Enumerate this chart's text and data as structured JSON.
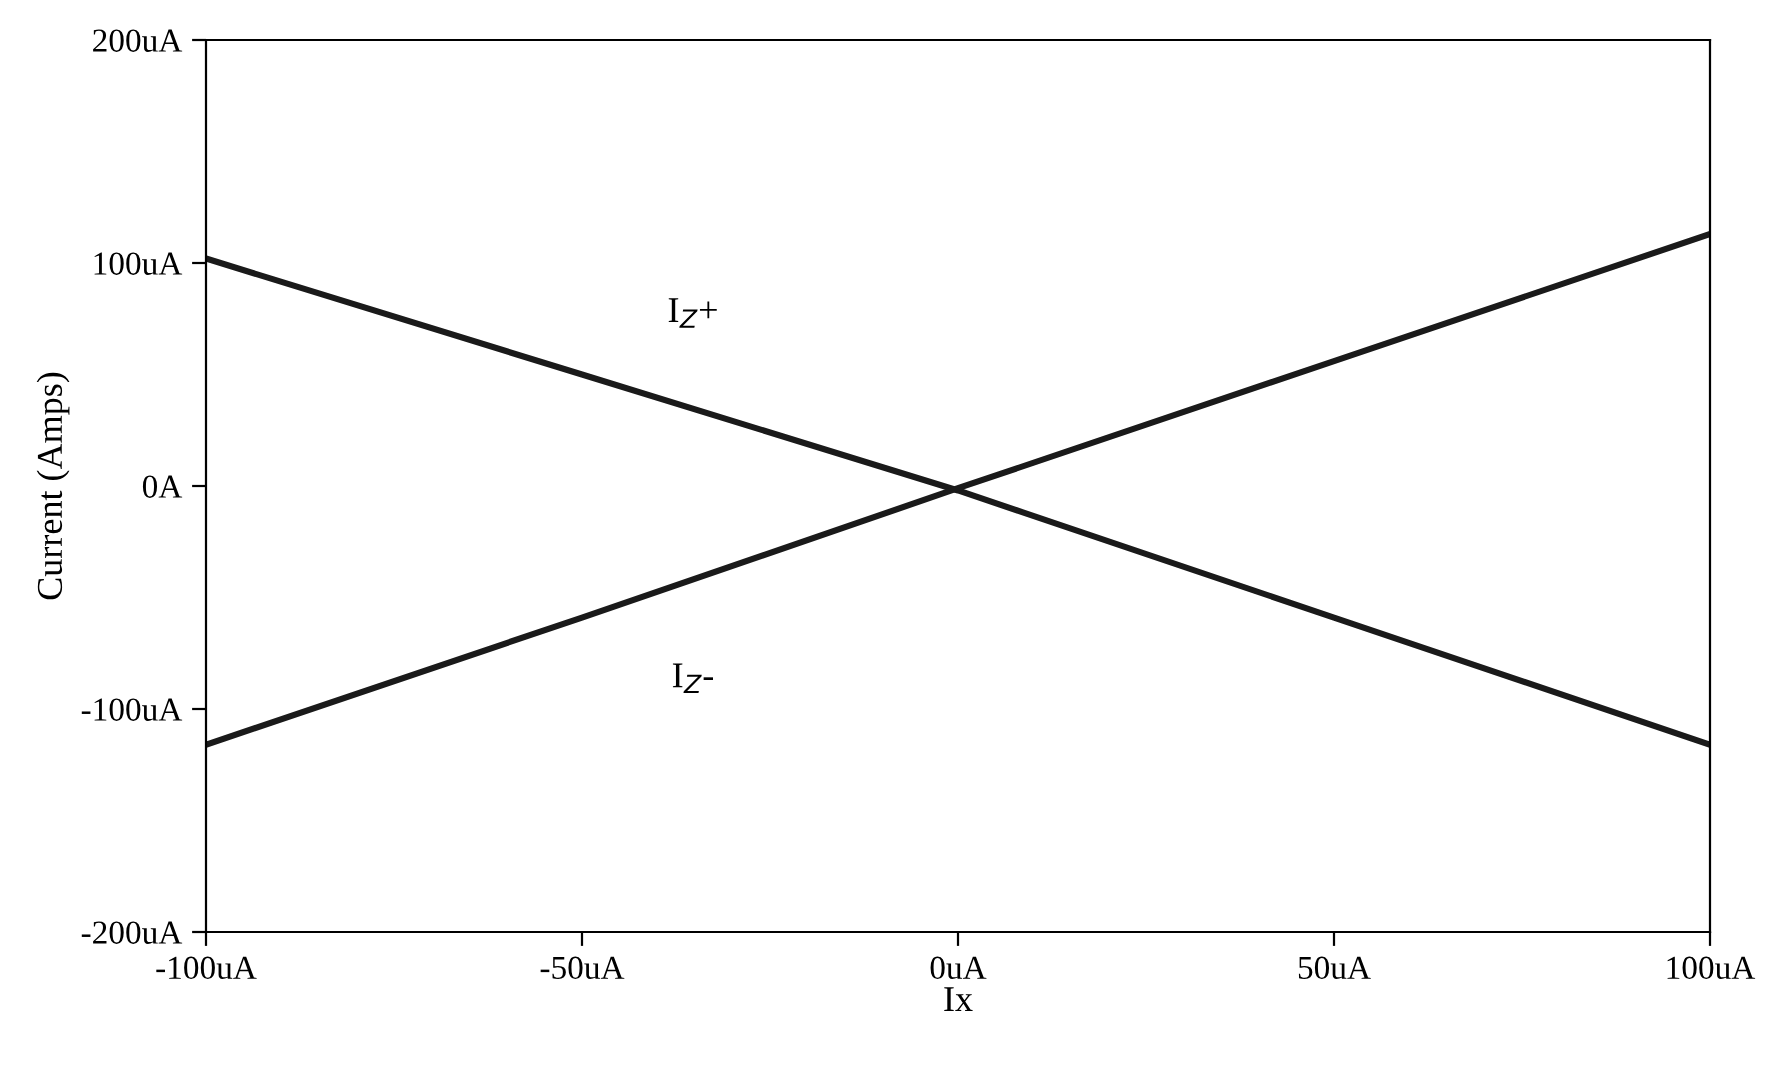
{
  "chart_data": {
    "type": "line",
    "xlabel": "Ix",
    "ylabel": "Current (Amps)",
    "x": [
      -100,
      -50,
      0,
      50,
      100
    ],
    "series": [
      {
        "name": "I$_{Z}$+",
        "color": "#1a1a1a",
        "values": [
          102,
          50,
          -2,
          -59,
          -116
        ]
      },
      {
        "name": "I$_{Z}$-",
        "color": "#1a1a1a",
        "values": [
          -116,
          -59,
          -1,
          56,
          113
        ]
      }
    ],
    "xlim": [
      -100,
      100
    ],
    "xticks": [
      {
        "value": -100,
        "label": "-100uA"
      },
      {
        "value": -50,
        "label": "-50uA"
      },
      {
        "value": 0,
        "label": "0uA"
      },
      {
        "value": 50,
        "label": "50uA"
      },
      {
        "value": 100,
        "label": "100uA"
      }
    ],
    "ylim": [
      -200,
      200
    ],
    "yticks": [
      {
        "value": -200,
        "label": "-200uA"
      },
      {
        "value": -100,
        "label": "-100uA"
      },
      {
        "value": 0,
        "label": "0A"
      },
      {
        "value": 100,
        "label": "100uA"
      },
      {
        "value": 200,
        "label": "200uA"
      }
    ],
    "grid": false,
    "legend": false,
    "marker": "none",
    "line_style": "solid"
  }
}
